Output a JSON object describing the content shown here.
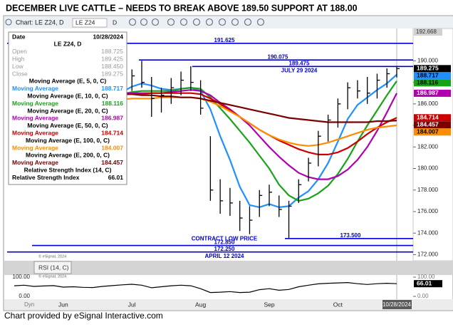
{
  "title": "DECEMBER LIVE CATTLE –  NEEDS TO BREAK ABOVE 189.50  SUPPORT AT 188.00",
  "footer": "Chart provided by eSignal Interactive.com",
  "toolbar": {
    "chart_name": "Chart: LE Z24, D",
    "symbol": "LE Z24",
    "interval": "D"
  },
  "watermark": "© eSignal, 2024",
  "info_panel": {
    "date_label": "Date",
    "date": "10/28/2024",
    "symbol": "LE Z24, D",
    "fields": [
      {
        "label": "Open",
        "value": 188.725
      },
      {
        "label": "High",
        "value": 189.425
      },
      {
        "label": "Low",
        "value": 188.45,
        "value_label": "188.450"
      },
      {
        "label": "Close",
        "value": 189.275
      }
    ]
  },
  "chart_data": {
    "type": "ohlc",
    "categories": [
      null,
      null,
      null,
      null,
      null,
      "Jun",
      null,
      null,
      null,
      null,
      null,
      null,
      "Jul",
      null,
      null,
      null,
      null,
      null,
      null,
      "Aug",
      null,
      null,
      null,
      null,
      null,
      null,
      "Sep",
      null,
      null,
      null,
      null,
      null,
      null,
      "Oct",
      null,
      null,
      null,
      null,
      null,
      "10/28/2024"
    ],
    "x_corner_label": "Dyn",
    "ylim": [
      171.5,
      193
    ],
    "yticks": [
      {
        "value": 190,
        "label": "190.000"
      },
      {
        "value": 188,
        "label": "188.000"
      },
      {
        "value": 186,
        "label": "186.000"
      },
      {
        "value": 184,
        "label": "184.000"
      },
      {
        "value": 182,
        "label": "182.000"
      },
      {
        "value": 180,
        "label": "180.000"
      },
      {
        "value": 178,
        "label": "178.000"
      },
      {
        "value": 176,
        "label": "176.000"
      },
      {
        "value": 174,
        "label": "174.000"
      },
      {
        "value": 172,
        "label": "172.000"
      }
    ],
    "y_top_label": {
      "value": 192.668,
      "label": "192.668"
    },
    "bars": {
      "color": "#000000",
      "high": [
        188.0,
        188.3,
        188.2,
        187.8,
        188.0,
        187.6,
        187.2,
        187.5,
        187.0,
        187.3,
        188.0,
        188.5,
        189.2,
        190.0,
        188.5,
        187.5,
        188.4,
        189.0,
        189.5,
        188.2,
        183.0,
        179.0,
        178.2,
        177.0,
        176.5,
        178.0,
        178.5,
        177.5,
        177.0,
        179.0,
        181.0,
        183.5,
        185.0,
        186.5,
        188.0,
        188.2,
        188.5,
        188.8,
        189.3,
        189.425
      ],
      "low": [
        186.8,
        187.0,
        186.5,
        186.2,
        186.6,
        186.0,
        185.8,
        186.0,
        185.5,
        185.8,
        186.4,
        186.8,
        187.2,
        187.5,
        184.8,
        185.2,
        186.0,
        186.8,
        187.2,
        185.0,
        177.0,
        175.8,
        175.6,
        174.2,
        173.9,
        175.5,
        176.5,
        175.5,
        173.5,
        176.8,
        178.8,
        180.2,
        182.5,
        183.8,
        185.5,
        186.5,
        186.0,
        186.5,
        187.5,
        188.45
      ],
      "close": [
        187.5,
        187.8,
        187.0,
        187.2,
        187.5,
        186.5,
        186.8,
        186.4,
        186.2,
        187.0,
        187.6,
        188.0,
        188.6,
        188.0,
        186.5,
        186.8,
        187.5,
        188.2,
        188.0,
        185.6,
        178.0,
        177.0,
        176.8,
        175.4,
        175.2,
        177.5,
        177.8,
        176.2,
        176.5,
        178.5,
        180.5,
        183.0,
        184.5,
        186.0,
        187.5,
        187.2,
        187.0,
        188.2,
        188.8,
        189.275
      ]
    },
    "series": [
      {
        "name": "Moving Average (E, 5, 0, C)",
        "label": "Moving Average",
        "color": "#1e90ff",
        "values": [
          187.2,
          187.4,
          187.4,
          187.3,
          187.4,
          187.2,
          187.0,
          186.8,
          186.6,
          186.6,
          186.8,
          187.1,
          187.6,
          187.9,
          187.7,
          187.4,
          187.3,
          187.4,
          187.5,
          187.2,
          185.5,
          183.0,
          180.8,
          178.3,
          176.6,
          176.4,
          176.7,
          176.4,
          176.5,
          177.3,
          177.9,
          179.0,
          180.5,
          182.5,
          184.6,
          185.9,
          186.6,
          187.3,
          187.9,
          188.717
        ]
      },
      {
        "name": "Moving Average (E, 10, 0, C)",
        "label": "Moving Average",
        "color": "#19a319",
        "values": [
          187.0,
          187.1,
          187.2,
          187.2,
          187.3,
          187.3,
          187.2,
          187.1,
          187.0,
          186.9,
          186.8,
          186.9,
          187.1,
          187.2,
          187.2,
          187.2,
          187.2,
          187.4,
          187.5,
          187.4,
          186.6,
          185.6,
          184.6,
          183.5,
          182.4,
          181.2,
          180.0,
          178.5,
          177.5,
          177.0,
          177.2,
          177.7,
          178.4,
          179.5,
          180.9,
          182.5,
          184.0,
          185.4,
          186.8,
          188.116
        ]
      },
      {
        "name": "Moving Average (E, 20, 0, C)",
        "label": "Moving Average",
        "color": "#b000b0",
        "values": [
          186.8,
          186.9,
          187.0,
          187.0,
          187.1,
          187.1,
          187.1,
          187.1,
          187.0,
          187.0,
          187.0,
          187.0,
          187.0,
          187.0,
          187.0,
          187.0,
          187.1,
          187.2,
          187.3,
          187.2,
          186.8,
          186.1,
          185.5,
          184.8,
          184.0,
          183.0,
          182.0,
          181.1,
          180.3,
          179.6,
          179.2,
          179.0,
          179.0,
          179.3,
          179.9,
          180.8,
          182.0,
          183.5,
          185.2,
          186.987
        ]
      },
      {
        "name": "Moving Average (E, 50, 0, C)",
        "label": "Moving Average",
        "color": "#cc0000",
        "values": [
          187.0,
          187.0,
          187.0,
          187.0,
          187.0,
          187.0,
          187.0,
          187.0,
          186.9,
          186.9,
          186.9,
          186.9,
          186.9,
          186.9,
          187.0,
          187.0,
          187.0,
          187.0,
          187.0,
          186.9,
          186.5,
          186.0,
          185.4,
          184.8,
          184.2,
          183.6,
          183.1,
          182.6,
          182.2,
          181.8,
          181.5,
          181.3,
          181.3,
          181.5,
          181.9,
          182.5,
          183.2,
          183.8,
          184.3,
          184.714
        ]
      },
      {
        "name": "Moving Average (E, 100, 0, C)",
        "label": "Moving Average",
        "color": "#ff8c00",
        "values": [
          185.8,
          185.9,
          186.0,
          186.0,
          186.1,
          186.1,
          186.2,
          186.2,
          186.3,
          186.3,
          186.4,
          186.4,
          186.5,
          186.5,
          186.5,
          186.6,
          186.6,
          186.6,
          186.6,
          186.5,
          186.2,
          185.8,
          185.3,
          184.8,
          184.2,
          183.6,
          183.1,
          182.7,
          182.4,
          182.2,
          182.1,
          182.2,
          182.4,
          182.7,
          183.0,
          183.3,
          183.6,
          183.8,
          183.9,
          184.007
        ]
      },
      {
        "name": "Moving Average (E, 200, 0, C)",
        "label": "Moving Average",
        "color": "#7b0000",
        "values": [
          187.5,
          187.4,
          187.4,
          187.3,
          187.3,
          187.2,
          187.2,
          187.1,
          187.1,
          187.0,
          187.0,
          186.9,
          186.9,
          186.8,
          186.8,
          186.7,
          186.7,
          186.6,
          186.6,
          186.5,
          186.3,
          186.1,
          185.9,
          185.7,
          185.5,
          185.3,
          185.1,
          184.9,
          184.7,
          184.6,
          184.5,
          184.4,
          184.3,
          184.3,
          184.3,
          184.3,
          184.3,
          184.4,
          184.4,
          184.457
        ]
      }
    ],
    "levels": [
      {
        "value": 191.625,
        "label": "191.625"
      },
      {
        "value": 190.075,
        "label": "190.075"
      },
      {
        "value": 189.475,
        "label": "189.475",
        "note": "JULY 29 2024"
      },
      {
        "value": 173.5,
        "label": "173.500"
      },
      {
        "value": 172.85,
        "label": "172.850",
        "note": "CONTRACT LOW PRICE"
      },
      {
        "value": 172.25,
        "label": "172.250",
        "note": "APRIL 12 2024"
      }
    ],
    "level_color": "#0000cc",
    "rsi": {
      "name": "Relative Strength Index (14, C)",
      "label": "Relative Strength Index",
      "tab": "RSI (14, C)",
      "color": "#000000",
      "ylim": [
        0,
        100
      ],
      "yticks": [
        {
          "value": 100,
          "label": "100.00"
        },
        {
          "value": 0,
          "label": "0.00"
        }
      ],
      "values": [
        55,
        58,
        52,
        54,
        56,
        48,
        50,
        47,
        46,
        52,
        56,
        60,
        63,
        58,
        45,
        50,
        55,
        58,
        55,
        40,
        20,
        22,
        25,
        20,
        22,
        35,
        40,
        32,
        36,
        50,
        58,
        65,
        68,
        70,
        72,
        66,
        62,
        66,
        68,
        66.01
      ]
    }
  }
}
